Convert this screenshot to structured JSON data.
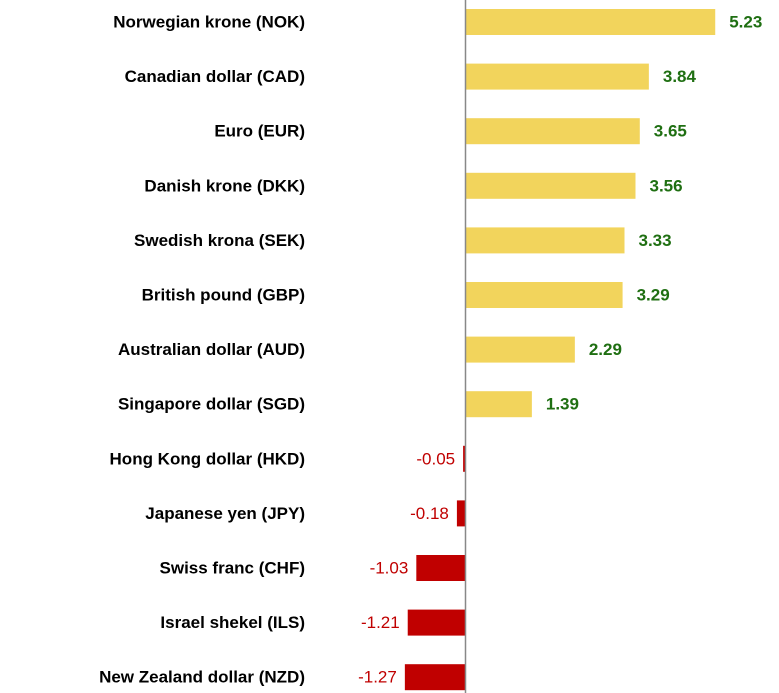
{
  "chart_data": {
    "type": "barh",
    "categories": [
      "Norwegian krone (NOK)",
      "Canadian dollar (CAD)",
      "Euro (EUR)",
      "Danish krone (DKK)",
      "Swedish krona (SEK)",
      "British pound (GBP)",
      "Australian dollar (AUD)",
      "Singapore dollar (SGD)",
      "Hong Kong dollar (HKD)",
      "Japanese yen (JPY)",
      "Swiss franc (CHF)",
      "Israel shekel (ILS)",
      "New Zealand dollar (NZD)"
    ],
    "values": [
      5.23,
      3.84,
      3.65,
      3.56,
      3.33,
      3.29,
      2.29,
      1.39,
      -0.05,
      -0.18,
      -1.03,
      -1.21,
      -1.27
    ],
    "xlim": [
      -2,
      6
    ],
    "color_positive": "#f2d45c",
    "color_negative": "#c00000",
    "label_color_positive": "#1f6f12",
    "label_color_negative": "#c00000"
  }
}
